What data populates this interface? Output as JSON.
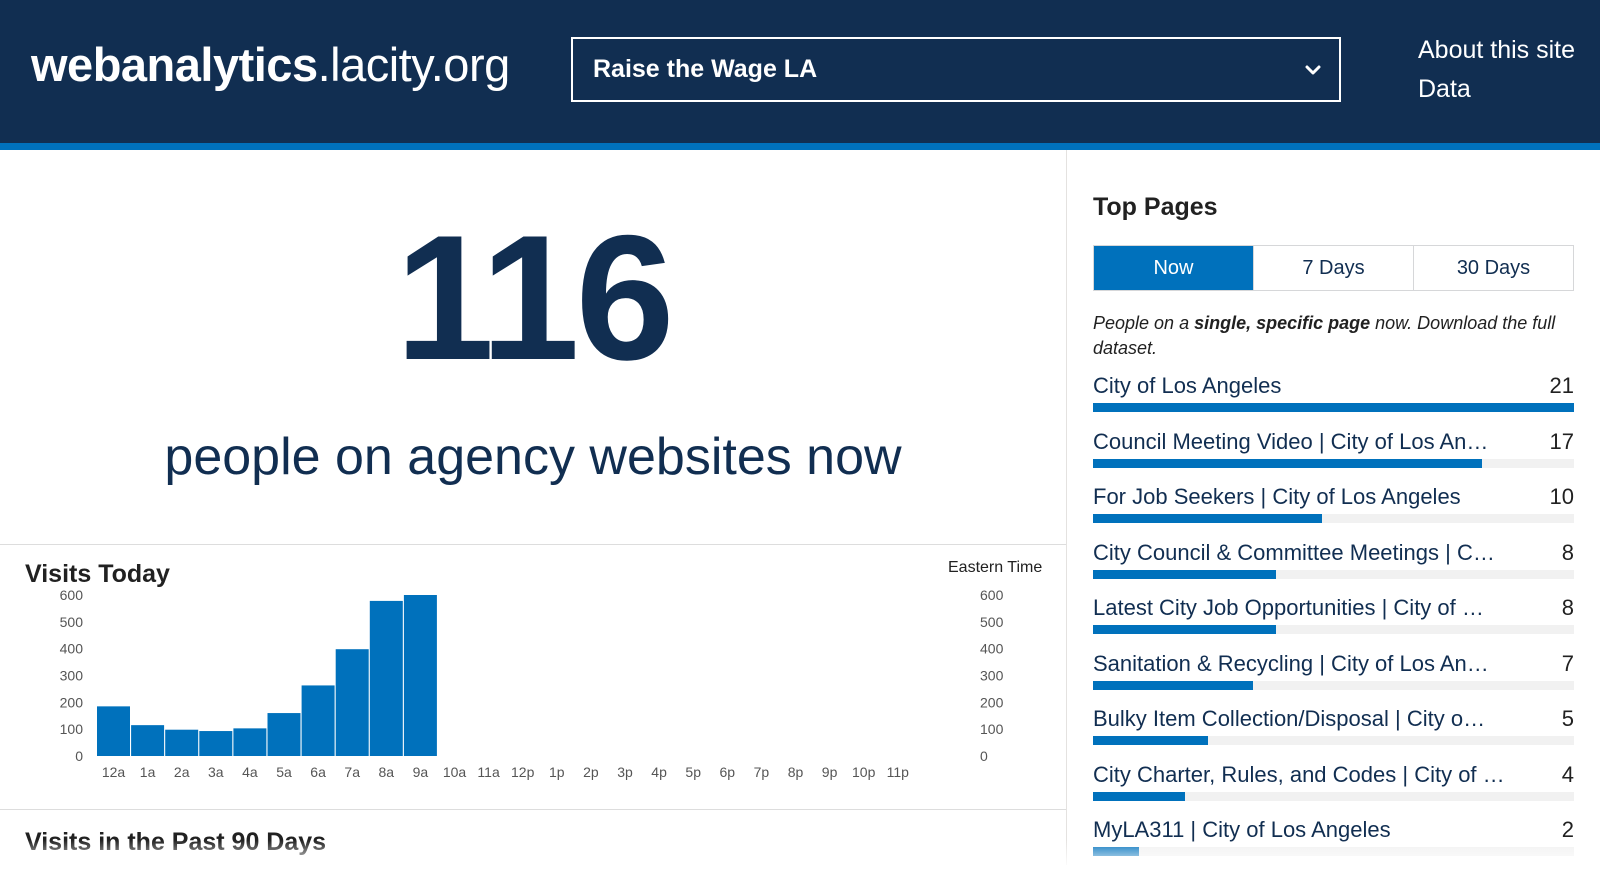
{
  "header": {
    "logo_bold": "webanalytics",
    "logo_rest": ".lacity.org",
    "agency_selected": "Raise the Wage LA",
    "links": [
      "About this site",
      "Data"
    ]
  },
  "realtime": {
    "count": "116",
    "caption": "people on agency websites now"
  },
  "visits_today": {
    "title": "Visits Today",
    "timezone": "Eastern Time"
  },
  "chart_data": {
    "type": "bar",
    "title": "Visits Today",
    "categories": [
      "12a",
      "1a",
      "2a",
      "3a",
      "4a",
      "5a",
      "6a",
      "7a",
      "8a",
      "9a",
      "10a",
      "11a",
      "12p",
      "1p",
      "2p",
      "3p",
      "4p",
      "5p",
      "6p",
      "7p",
      "8p",
      "9p",
      "10p",
      "11p"
    ],
    "values": [
      185,
      115,
      98,
      93,
      103,
      160,
      263,
      398,
      578,
      600,
      null,
      null,
      null,
      null,
      null,
      null,
      null,
      null,
      null,
      null,
      null,
      null,
      null,
      null
    ],
    "ylim": [
      0,
      600
    ],
    "yticks": [
      0,
      100,
      200,
      300,
      400,
      500,
      600
    ],
    "bar_color": "#0071bc"
  },
  "past_90": {
    "title": "Visits in the Past 90 Days"
  },
  "top_pages": {
    "title": "Top Pages",
    "tabs": [
      {
        "label": "Now",
        "active": true
      },
      {
        "label": "7 Days",
        "active": false
      },
      {
        "label": "30 Days",
        "active": false
      }
    ],
    "desc_1": "People on a ",
    "desc_2": "single, specific page",
    "desc_3": " now. Download the full dataset.",
    "max": 21,
    "items": [
      {
        "name": "City of Los Angeles",
        "count": 21
      },
      {
        "name": "Council Meeting Video | City of Los An…",
        "count": 17
      },
      {
        "name": "For Job Seekers | City of Los Angeles",
        "count": 10
      },
      {
        "name": "City Council & Committee Meetings | C…",
        "count": 8
      },
      {
        "name": "Latest City Job Opportunities | City of …",
        "count": 8
      },
      {
        "name": "Sanitation & Recycling | City of Los An…",
        "count": 7
      },
      {
        "name": "Bulky Item Collection/Disposal | City o…",
        "count": 5
      },
      {
        "name": "City Charter, Rules, and Codes | City of …",
        "count": 4
      },
      {
        "name": "MyLA311 | City of Los Angeles",
        "count": 2
      }
    ]
  },
  "colors": {
    "navy": "#112e51",
    "accent": "#0071bc"
  }
}
